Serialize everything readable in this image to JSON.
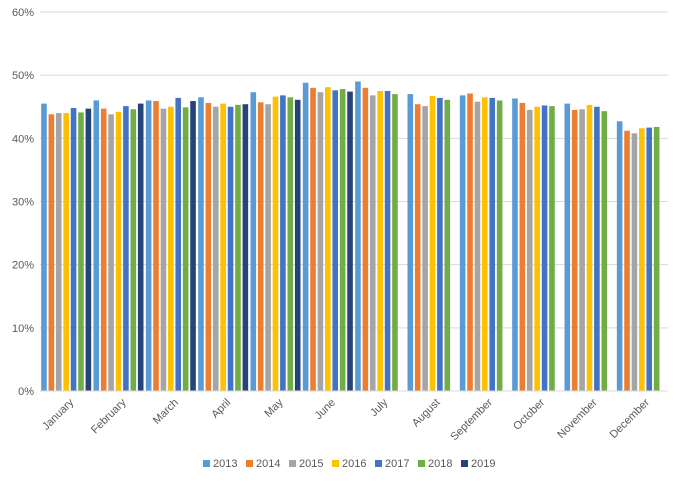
{
  "chart_data": {
    "type": "bar",
    "title": "",
    "xlabel": "",
    "ylabel": "",
    "ylim": [
      0,
      60
    ],
    "yticks": [
      0,
      10,
      20,
      30,
      40,
      50,
      60
    ],
    "ytick_labels": [
      "0%",
      "10%",
      "20%",
      "30%",
      "40%",
      "50%",
      "60%"
    ],
    "grid": true,
    "legend_position": "bottom",
    "categories": [
      "January",
      "February",
      "March",
      "April",
      "May",
      "June",
      "July",
      "August",
      "September",
      "October",
      "November",
      "December"
    ],
    "series": [
      {
        "name": "2013",
        "color": "#5B9BD5",
        "values": [
          45.5,
          46.0,
          46.0,
          46.5,
          47.3,
          48.8,
          49.0,
          47.0,
          46.8,
          46.3,
          45.5,
          42.7
        ]
      },
      {
        "name": "2014",
        "color": "#ED7D31",
        "values": [
          43.8,
          44.7,
          45.9,
          45.6,
          45.7,
          48.0,
          48.0,
          45.4,
          47.1,
          45.6,
          44.5,
          41.2
        ]
      },
      {
        "name": "2015",
        "color": "#A5A5A5",
        "values": [
          44.0,
          43.8,
          44.7,
          45.0,
          45.4,
          47.3,
          46.8,
          45.1,
          45.8,
          44.5,
          44.6,
          40.8
        ]
      },
      {
        "name": "2016",
        "color": "#FFC000",
        "values": [
          44.0,
          44.2,
          45.0,
          45.5,
          46.6,
          48.1,
          47.5,
          46.7,
          46.5,
          45.0,
          45.3,
          41.6
        ]
      },
      {
        "name": "2017",
        "color": "#4472C4",
        "values": [
          44.8,
          45.1,
          46.4,
          45.0,
          46.8,
          47.6,
          47.5,
          46.4,
          46.4,
          45.2,
          45.0,
          41.7
        ]
      },
      {
        "name": "2018",
        "color": "#70AD47",
        "values": [
          44.1,
          44.6,
          44.9,
          45.3,
          46.5,
          47.8,
          47.0,
          46.1,
          46.0,
          45.1,
          44.3,
          41.8
        ]
      },
      {
        "name": "2019",
        "color": "#264478",
        "values": [
          44.7,
          45.5,
          45.9,
          45.4,
          46.1,
          47.4,
          null,
          null,
          null,
          null,
          null,
          null
        ]
      }
    ]
  }
}
